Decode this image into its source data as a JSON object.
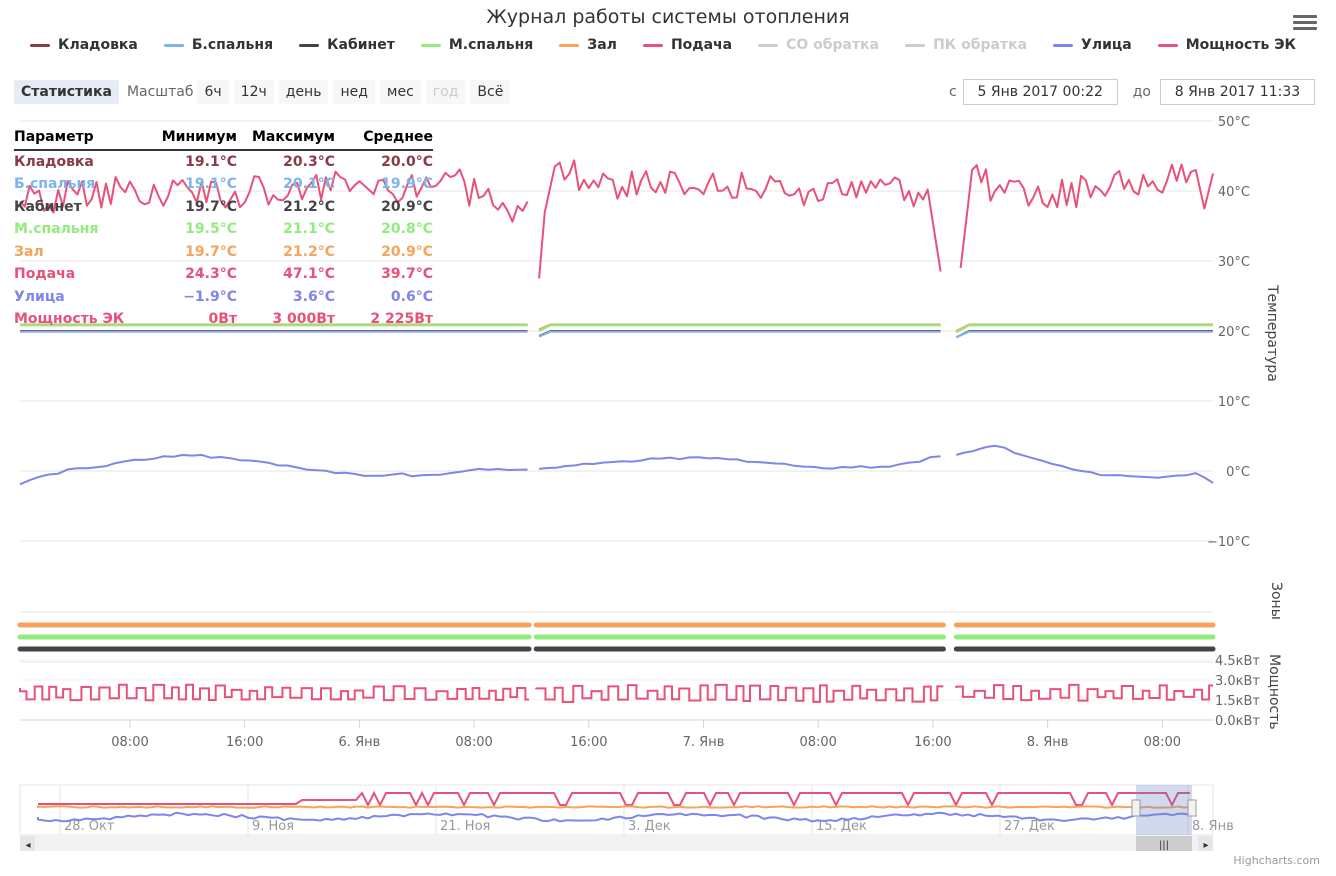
{
  "title": "Журнал работы системы отопления",
  "legend": [
    {
      "name": "Кладовка",
      "color": "#8b3a48",
      "enabled": true
    },
    {
      "name": "Б.спальня",
      "color": "#7cb5ec",
      "enabled": true
    },
    {
      "name": "Кабинет",
      "color": "#434348",
      "enabled": true
    },
    {
      "name": "М.спальня",
      "color": "#90ed7d",
      "enabled": true
    },
    {
      "name": "Зал",
      "color": "#f7a35c",
      "enabled": true
    },
    {
      "name": "Подача",
      "color": "#e8517a",
      "enabled": true
    },
    {
      "name": "СО обратка",
      "color": "#cccccc",
      "enabled": false
    },
    {
      "name": "ПК обратка",
      "color": "#cccccc",
      "enabled": false
    },
    {
      "name": "Улица",
      "color": "#8085e9",
      "enabled": true
    },
    {
      "name": "Мощность ЭК",
      "color": "#e8517a",
      "enabled": true
    }
  ],
  "toolbar": {
    "statistics": "Статистика",
    "scale_label": "Масштаб",
    "buttons": [
      "6ч",
      "12ч",
      "день",
      "нед",
      "мес",
      "год",
      "Всё"
    ],
    "disabled": "год",
    "from_label": "с",
    "from_value": "5 Янв 2017 00:22",
    "to_label": "до",
    "to_value": "8 Янв 2017 11:33"
  },
  "stats": {
    "headers": [
      "Параметр",
      "Минимум",
      "Максимум",
      "Среднее"
    ],
    "rows": [
      {
        "name": "Кладовка",
        "min": "19.1°C",
        "max": "20.3°C",
        "avg": "20.0°C",
        "color": "#8b3a48"
      },
      {
        "name": "Б.спальня",
        "min": "19.1°C",
        "max": "20.1°C",
        "avg": "19.9°C",
        "color": "#7cb5ec"
      },
      {
        "name": "Кабинет",
        "min": "19.7°C",
        "max": "21.2°C",
        "avg": "20.9°C",
        "color": "#434348"
      },
      {
        "name": "М.спальня",
        "min": "19.5°C",
        "max": "21.1°C",
        "avg": "20.8°C",
        "color": "#90ed7d"
      },
      {
        "name": "Зал",
        "min": "19.7°C",
        "max": "21.2°C",
        "avg": "20.9°C",
        "color": "#f7a35c"
      },
      {
        "name": "Подача",
        "min": "24.3°C",
        "max": "47.1°C",
        "avg": "39.7°C",
        "color": "#e8517a"
      },
      {
        "name": "Улица",
        "min": "−1.9°C",
        "max": "3.6°C",
        "avg": "0.6°C",
        "color": "#8085e9"
      },
      {
        "name": "Мощность ЭК",
        "min": "0Вт",
        "max": "3 000Вт",
        "avg": "2 225Вт",
        "color": "#e8517a"
      }
    ]
  },
  "axes": {
    "temp_title": "Температура",
    "zones_title": "Зоны",
    "power_title": "Мощность",
    "temp_ticks": [
      "50°C",
      "40°C",
      "30°C",
      "20°C",
      "10°C",
      "0°C",
      "−10°C"
    ],
    "power_ticks": [
      "4.5кВт",
      "3.0кВт",
      "1.5кВт",
      "0.0кВт"
    ],
    "x_ticks": [
      "08:00",
      "16:00",
      "6. Янв",
      "08:00",
      "16:00",
      "7. Янв",
      "08:00",
      "16:00",
      "8. Янв",
      "08:00"
    ],
    "nav_ticks": [
      "28. Окт",
      "9. Ноя",
      "21. Ноя",
      "3. Дек",
      "15. Дек",
      "27. Дек",
      "8. Янв"
    ]
  },
  "chart_data": {
    "type": "line",
    "x_unit": "hours since 5 Янв 2017 00:22",
    "x_range": [
      0,
      83.2
    ],
    "gaps": [
      [
        35.5,
        36.0
      ],
      [
        64.4,
        65.3
      ]
    ],
    "temp_ylim": [
      -10,
      50
    ],
    "power_ylim": [
      0,
      4.5
    ],
    "series": [
      {
        "name": "Подача",
        "axis": "temp",
        "color": "#e8517a",
        "points": [
          [
            0,
            38.5
          ],
          [
            4,
            39.5
          ],
          [
            8,
            40.2
          ],
          [
            12,
            39.8
          ],
          [
            16,
            39.8
          ],
          [
            20,
            40.4
          ],
          [
            24,
            40.8
          ],
          [
            28,
            40.5
          ],
          [
            30,
            42.0
          ],
          [
            32,
            39.0
          ],
          [
            34,
            37.2
          ],
          [
            35.4,
            38.5
          ],
          [
            36.2,
            27.5
          ],
          [
            36.6,
            37.0
          ],
          [
            37.3,
            43.5
          ],
          [
            40,
            41.5
          ],
          [
            44,
            40.5
          ],
          [
            48,
            41.2
          ],
          [
            52,
            40.3
          ],
          [
            56,
            38.8
          ],
          [
            58,
            41.3
          ],
          [
            62,
            40.0
          ],
          [
            63.3,
            40.2
          ],
          [
            64.2,
            28.5
          ],
          [
            65.6,
            29.0
          ],
          [
            66.4,
            43.0
          ],
          [
            68,
            40.0
          ],
          [
            72,
            39.5
          ],
          [
            76,
            40.5
          ],
          [
            80,
            41.5
          ],
          [
            82,
            43.0
          ],
          [
            82.6,
            37.5
          ],
          [
            83.2,
            42.5
          ]
        ]
      },
      {
        "name": "Кабинет",
        "axis": "temp",
        "color": "#434348",
        "points": [
          [
            0,
            20.9
          ],
          [
            35.4,
            20.9
          ],
          [
            36.2,
            20.2
          ],
          [
            37,
            20.9
          ],
          [
            64.2,
            20.9
          ],
          [
            65.3,
            20.0
          ],
          [
            66.2,
            20.9
          ],
          [
            83.2,
            20.9
          ]
        ]
      },
      {
        "name": "Зал",
        "axis": "temp",
        "color": "#f7a35c",
        "points": [
          [
            0,
            20.9
          ],
          [
            35.4,
            20.9
          ],
          [
            36.2,
            20.2
          ],
          [
            37,
            20.9
          ],
          [
            64.2,
            20.9
          ],
          [
            65.3,
            20.0
          ],
          [
            66.2,
            20.9
          ],
          [
            83.2,
            20.9
          ]
        ]
      },
      {
        "name": "М.спальня",
        "axis": "temp",
        "color": "#90ed7d",
        "points": [
          [
            0,
            20.8
          ],
          [
            35.4,
            20.8
          ],
          [
            36.2,
            20.0
          ],
          [
            37,
            20.8
          ],
          [
            64.2,
            20.8
          ],
          [
            65.3,
            19.8
          ],
          [
            66.2,
            20.8
          ],
          [
            83.2,
            20.8
          ]
        ]
      },
      {
        "name": "Кладовка",
        "axis": "temp",
        "color": "#8b3a48",
        "points": [
          [
            0,
            20.0
          ],
          [
            35.4,
            20.0
          ],
          [
            36.2,
            19.3
          ],
          [
            37,
            20.0
          ],
          [
            64.2,
            20.0
          ],
          [
            65.3,
            19.1
          ],
          [
            66.2,
            20.0
          ],
          [
            83.2,
            20.0
          ]
        ]
      },
      {
        "name": "Б.спальня",
        "axis": "temp",
        "color": "#7cb5ec",
        "points": [
          [
            0,
            19.9
          ],
          [
            35.4,
            19.9
          ],
          [
            36.2,
            19.2
          ],
          [
            37,
            19.9
          ],
          [
            64.2,
            19.9
          ],
          [
            65.3,
            19.1
          ],
          [
            66.2,
            19.9
          ],
          [
            83.2,
            19.9
          ]
        ]
      },
      {
        "name": "Улица",
        "axis": "temp",
        "color": "#8085e9",
        "points": [
          [
            0,
            -1.9
          ],
          [
            2,
            -0.5
          ],
          [
            4,
            0.4
          ],
          [
            6,
            0.7
          ],
          [
            8,
            1.6
          ],
          [
            10,
            2.1
          ],
          [
            12,
            2.2
          ],
          [
            14,
            2.0
          ],
          [
            16,
            1.5
          ],
          [
            18,
            0.8
          ],
          [
            20,
            0.2
          ],
          [
            22,
            -0.3
          ],
          [
            24,
            -0.7
          ],
          [
            26,
            -0.5
          ],
          [
            28,
            -0.6
          ],
          [
            30,
            -0.3
          ],
          [
            32,
            0.3
          ],
          [
            35.4,
            0.2
          ],
          [
            36.2,
            0.3
          ],
          [
            38,
            0.7
          ],
          [
            40,
            1.0
          ],
          [
            44,
            1.8
          ],
          [
            48,
            1.8
          ],
          [
            52,
            1.2
          ],
          [
            56,
            0.4
          ],
          [
            60,
            0.6
          ],
          [
            62,
            1.2
          ],
          [
            64.2,
            2.1
          ],
          [
            65.3,
            2.3
          ],
          [
            67,
            3.2
          ],
          [
            68,
            3.6
          ],
          [
            70,
            2.2
          ],
          [
            72,
            1.0
          ],
          [
            74,
            0.0
          ],
          [
            76,
            -0.6
          ],
          [
            78,
            -0.8
          ],
          [
            80,
            -0.8
          ],
          [
            82,
            -0.3
          ],
          [
            83.2,
            -1.7
          ]
        ]
      },
      {
        "name": "Мощность ЭК",
        "axis": "power",
        "color": "#e8517a",
        "style": "pulse",
        "segments": [
          [
            0,
            35.5,
            2.4,
            1.6
          ],
          [
            36.0,
            64.4,
            2.4,
            1.5
          ],
          [
            65.3,
            83.2,
            2.4,
            1.6
          ]
        ]
      }
    ],
    "zones": [
      {
        "name": "Зал",
        "color": "#f7a35c"
      },
      {
        "name": "М.спальня",
        "color": "#90ed7d"
      },
      {
        "name": "Кабинет",
        "color": "#434348"
      }
    ]
  }
}
